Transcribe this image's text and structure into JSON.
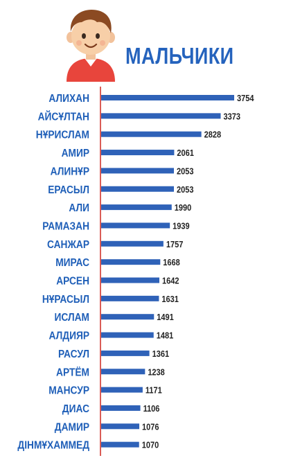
{
  "title": "МАЛЬЧИКИ",
  "colors": {
    "bar": "#2f62b8",
    "axis": "#d0342c",
    "title": "#2563bd",
    "label": "#1f5fb8"
  },
  "chart_data": {
    "type": "bar",
    "orientation": "horizontal",
    "title": "МАЛЬЧИКИ",
    "xlabel": "",
    "ylabel": "",
    "grid": false,
    "xlim": [
      0,
      3754
    ],
    "categories": [
      "АЛИХАН",
      "АЙСҰЛТАН",
      "НҰРИСЛАМ",
      "АМИР",
      "АЛИНҰР",
      "ЕРАСЫЛ",
      "АЛИ",
      "РАМАЗАН",
      "САНЖАР",
      "МИРАС",
      "АРСЕН",
      "НҰРАСЫЛ",
      "ИСЛАМ",
      "АЛДИЯР",
      "РАСУЛ",
      "АРТЁМ",
      "МАНСУР",
      "ДИАС",
      "ДАМИР",
      "ДІНМҰХАММЕД"
    ],
    "values": [
      3754,
      3373,
      2828,
      2061,
      2053,
      2053,
      1990,
      1939,
      1757,
      1668,
      1642,
      1631,
      1491,
      1481,
      1361,
      1238,
      1171,
      1106,
      1076,
      1070
    ]
  }
}
